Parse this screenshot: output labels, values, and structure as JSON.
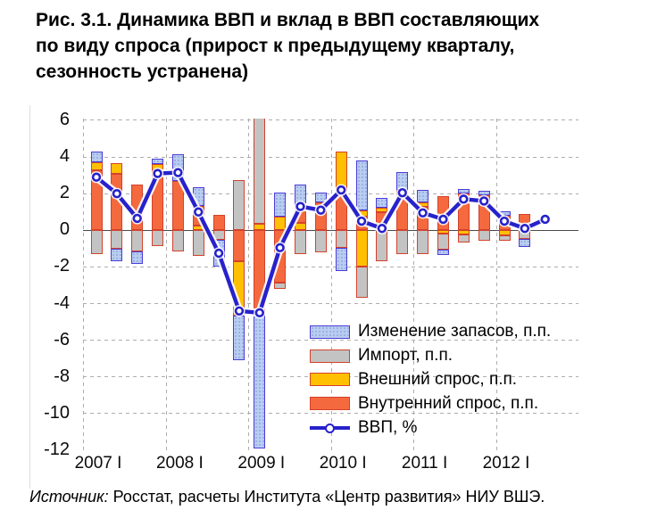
{
  "title": {
    "lines": [
      "Рис. 3.1. Динамика ВВП и вклад в ВВП составляющих",
      "по виду спроса (прирост к предыдущему кварталу,",
      "сезонность устранена)"
    ]
  },
  "source": {
    "prefix": "Источник:",
    "text": " Росстат, расчеты Института «Центр развития» НИУ ВШЭ."
  },
  "legend": {
    "stocks": "Изменение запасов, п.п.",
    "import": "Импорт, п.п.",
    "external": "Внешний спрос, п.п.",
    "domestic": "Внутренний спрос, п.п.",
    "gdp": "ВВП, %"
  },
  "colors": {
    "domestic_fill": "#F4693E",
    "external_fill": "#FFC003",
    "import_fill": "#C3C3C3",
    "stocks_fill": "#B9CDF1",
    "bar_border_red": "#D3422B",
    "stocks_border": "#4B3BD6",
    "gdp_line": "#2722CB",
    "gridline": "#ADADAD"
  },
  "chart_data": {
    "type": "bar",
    "subtype": "stacked-contribution-bars-with-line",
    "title": "Динамика ВВП и вклад в ВВП составляющих по виду спроса (прирост к предыдущему кварталу, сезонность устранена)",
    "ylim": [
      -12,
      6
    ],
    "y_ticks": [
      6,
      4,
      2,
      0,
      -2,
      -4,
      -6,
      -8,
      -10,
      -12
    ],
    "x_tick_labels": [
      "2007 I",
      "2008 I",
      "2009 I",
      "2010 I",
      "2011 I",
      "2012 I"
    ],
    "grid": "dashed, horizontal every 2 units, vertical at year boundaries",
    "legend_position": "inside lower right",
    "note": "2009 I import segment is clipped at the top of the plot (extends above +6)",
    "series_keys": [
      "stocks",
      "import",
      "external",
      "domestic"
    ],
    "bars": [
      {
        "q": "2007 I",
        "segments": [
          {
            "s": "domestic",
            "from": 0,
            "to": 3.25
          },
          {
            "s": "external",
            "from": 3.25,
            "to": 3.7
          },
          {
            "s": "stocks",
            "from": 3.7,
            "to": 4.3
          },
          {
            "s": "import",
            "from": 0,
            "to": -1.3
          }
        ]
      },
      {
        "q": "2007 II",
        "segments": [
          {
            "s": "domestic",
            "from": 0,
            "to": 3.1
          },
          {
            "s": "external",
            "from": 3.1,
            "to": 3.65
          },
          {
            "s": "import",
            "from": 0,
            "to": -1.0
          },
          {
            "s": "stocks",
            "from": -1.0,
            "to": -1.7
          }
        ]
      },
      {
        "q": "2007 III",
        "segments": [
          {
            "s": "domestic",
            "from": 0,
            "to": 2.5
          },
          {
            "s": "import",
            "from": 0,
            "to": -1.15
          },
          {
            "s": "stocks",
            "from": -1.15,
            "to": -1.85
          }
        ]
      },
      {
        "q": "2007 IV",
        "segments": [
          {
            "s": "domestic",
            "from": 0,
            "to": 3.25
          },
          {
            "s": "external",
            "from": 3.25,
            "to": 3.6
          },
          {
            "s": "stocks",
            "from": 3.6,
            "to": 3.9
          },
          {
            "s": "import",
            "from": 0,
            "to": -0.85
          }
        ]
      },
      {
        "q": "2008 I",
        "segments": [
          {
            "s": "domestic",
            "from": 0,
            "to": 2.7
          },
          {
            "s": "stocks",
            "from": 2.7,
            "to": 4.15
          },
          {
            "s": "import",
            "from": 0,
            "to": -1.15
          }
        ]
      },
      {
        "q": "2008 II",
        "segments": [
          {
            "s": "external",
            "from": 0,
            "to": 0.25
          },
          {
            "s": "domestic",
            "from": 0.25,
            "to": 1.35
          },
          {
            "s": "stocks",
            "from": 1.35,
            "to": 2.35
          },
          {
            "s": "import",
            "from": 0,
            "to": -1.4
          }
        ]
      },
      {
        "q": "2008 III",
        "segments": [
          {
            "s": "domestic",
            "from": 0,
            "to": 0.85
          },
          {
            "s": "import",
            "from": 0,
            "to": -0.5
          },
          {
            "s": "stocks",
            "from": -0.5,
            "to": -2.0
          }
        ]
      },
      {
        "q": "2008 IV",
        "segments": [
          {
            "s": "import",
            "from": 0,
            "to": 2.75
          },
          {
            "s": "domestic",
            "from": 0,
            "to": -1.7
          },
          {
            "s": "external",
            "from": -1.7,
            "to": -4.65
          },
          {
            "s": "stocks",
            "from": -4.65,
            "to": -7.1
          }
        ]
      },
      {
        "q": "2009 I",
        "segments": [
          {
            "s": "external",
            "from": 0,
            "to": 0.35
          },
          {
            "s": "import",
            "from": 0.35,
            "to": 6.2
          },
          {
            "s": "domestic",
            "from": 0,
            "to": -4.55
          },
          {
            "s": "stocks",
            "from": -4.55,
            "to": -11.9
          }
        ]
      },
      {
        "q": "2009 II",
        "segments": [
          {
            "s": "external",
            "from": 0,
            "to": 0.75
          },
          {
            "s": "stocks",
            "from": 0.75,
            "to": 2.05
          },
          {
            "s": "domestic",
            "from": 0,
            "to": -2.85
          },
          {
            "s": "import",
            "from": -2.85,
            "to": -3.2
          }
        ]
      },
      {
        "q": "2009 III",
        "segments": [
          {
            "s": "external",
            "from": 0,
            "to": 0.4
          },
          {
            "s": "domestic",
            "from": 0.4,
            "to": 1.4
          },
          {
            "s": "stocks",
            "from": 1.4,
            "to": 2.5
          },
          {
            "s": "import",
            "from": 0,
            "to": -1.3
          }
        ]
      },
      {
        "q": "2009 IV",
        "segments": [
          {
            "s": "domestic",
            "from": 0,
            "to": 1.5
          },
          {
            "s": "stocks",
            "from": 1.5,
            "to": 2.05
          },
          {
            "s": "import",
            "from": 0,
            "to": -1.2
          }
        ]
      },
      {
        "q": "2010 I",
        "segments": [
          {
            "s": "domestic",
            "from": 0,
            "to": 2.3
          },
          {
            "s": "external",
            "from": 2.3,
            "to": 4.3
          },
          {
            "s": "import",
            "from": 0,
            "to": -0.95
          },
          {
            "s": "stocks",
            "from": -0.95,
            "to": -2.2
          }
        ]
      },
      {
        "q": "2010 II",
        "segments": [
          {
            "s": "domestic",
            "from": 0,
            "to": 0.75
          },
          {
            "s": "external",
            "from": 0.75,
            "to": 1.1
          },
          {
            "s": "stocks",
            "from": 1.1,
            "to": 3.8
          },
          {
            "s": "external",
            "from": 0,
            "to": -2.0
          },
          {
            "s": "import",
            "from": -2.0,
            "to": -3.7
          }
        ]
      },
      {
        "q": "2010 III",
        "segments": [
          {
            "s": "domestic",
            "from": 0,
            "to": 1.0
          },
          {
            "s": "external",
            "from": 1.0,
            "to": 1.25
          },
          {
            "s": "stocks",
            "from": 1.25,
            "to": 1.75
          },
          {
            "s": "import",
            "from": 0,
            "to": -1.7
          }
        ]
      },
      {
        "q": "2010 IV",
        "segments": [
          {
            "s": "domestic",
            "from": 0,
            "to": 2.2
          },
          {
            "s": "stocks",
            "from": 2.2,
            "to": 3.2
          },
          {
            "s": "import",
            "from": 0,
            "to": -1.3
          }
        ]
      },
      {
        "q": "2011 I",
        "segments": [
          {
            "s": "domestic",
            "from": 0,
            "to": 1.3
          },
          {
            "s": "external",
            "from": 1.3,
            "to": 1.5
          },
          {
            "s": "stocks",
            "from": 1.5,
            "to": 2.2
          },
          {
            "s": "import",
            "from": 0,
            "to": -1.3
          }
        ]
      },
      {
        "q": "2011 II",
        "segments": [
          {
            "s": "domestic",
            "from": 0,
            "to": 1.85
          },
          {
            "s": "external",
            "from": 0,
            "to": -0.2
          },
          {
            "s": "import",
            "from": -0.2,
            "to": -1.05
          },
          {
            "s": "stocks",
            "from": -1.05,
            "to": -1.35
          }
        ]
      },
      {
        "q": "2011 III",
        "segments": [
          {
            "s": "domestic",
            "from": 0,
            "to": 2.0
          },
          {
            "s": "stocks",
            "from": 2.0,
            "to": 2.25
          },
          {
            "s": "external",
            "from": 0,
            "to": -0.25
          },
          {
            "s": "import",
            "from": -0.25,
            "to": -0.65
          }
        ]
      },
      {
        "q": "2011 IV",
        "segments": [
          {
            "s": "domestic",
            "from": 0,
            "to": 1.9
          },
          {
            "s": "stocks",
            "from": 1.9,
            "to": 2.15
          },
          {
            "s": "import",
            "from": 0,
            "to": -0.55
          }
        ]
      },
      {
        "q": "2012 I",
        "segments": [
          {
            "s": "domestic",
            "from": 0,
            "to": 0.8
          },
          {
            "s": "stocks",
            "from": 0.8,
            "to": 1.05
          },
          {
            "s": "external",
            "from": 0,
            "to": -0.3
          },
          {
            "s": "import",
            "from": -0.3,
            "to": -0.55
          }
        ]
      },
      {
        "q": "2012 II",
        "segments": [
          {
            "s": "domestic",
            "from": 0,
            "to": 0.9
          },
          {
            "s": "import",
            "from": 0,
            "to": -0.45
          },
          {
            "s": "stocks",
            "from": -0.45,
            "to": -0.9
          }
        ]
      },
      {
        "q": "2012 III",
        "segments": []
      }
    ],
    "gdp_line": {
      "name": "ВВП, %",
      "values": [
        2.9,
        2.0,
        0.65,
        3.1,
        3.15,
        1.0,
        -1.25,
        -4.4,
        -4.5,
        -0.95,
        1.3,
        1.1,
        2.2,
        0.5,
        0.1,
        2.05,
        0.95,
        0.6,
        1.7,
        1.6,
        0.5,
        0.1,
        0.6
      ]
    }
  }
}
